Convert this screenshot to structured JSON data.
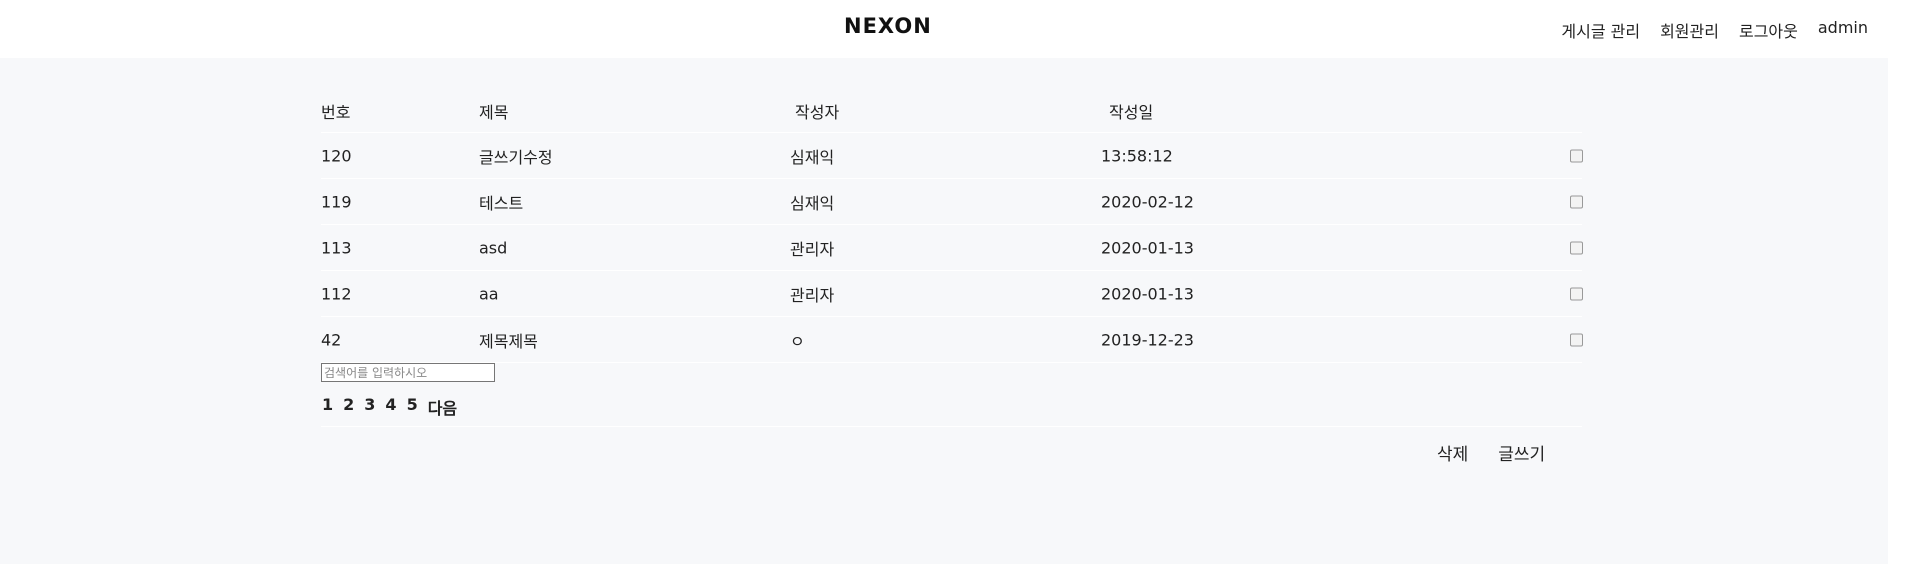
{
  "header": {
    "logo": "NEXON",
    "nav": [
      "게시글 관리",
      "회원관리",
      "로그아웃",
      "admin"
    ]
  },
  "table": {
    "columns": [
      "번호",
      "제목",
      "작성자",
      "작성일"
    ],
    "rows": [
      {
        "no": "120",
        "title": "글쓰기수정",
        "author": "심재익",
        "date": "13:58:12"
      },
      {
        "no": "119",
        "title": "테스트",
        "author": "심재익",
        "date": "2020-02-12"
      },
      {
        "no": "113",
        "title": "asd",
        "author": "관리자",
        "date": "2020-01-13"
      },
      {
        "no": "112",
        "title": "aa",
        "author": "관리자",
        "date": "2020-01-13"
      },
      {
        "no": "42",
        "title": "제목제목",
        "author": "ㅇ",
        "date": "2019-12-23"
      }
    ]
  },
  "search": {
    "placeholder": "검색어를 입력하시오"
  },
  "pagination": {
    "pages": [
      "1",
      "2",
      "3",
      "4",
      "5"
    ],
    "next": "다음"
  },
  "actions": {
    "delete": "삭제",
    "write": "글쓰기"
  }
}
